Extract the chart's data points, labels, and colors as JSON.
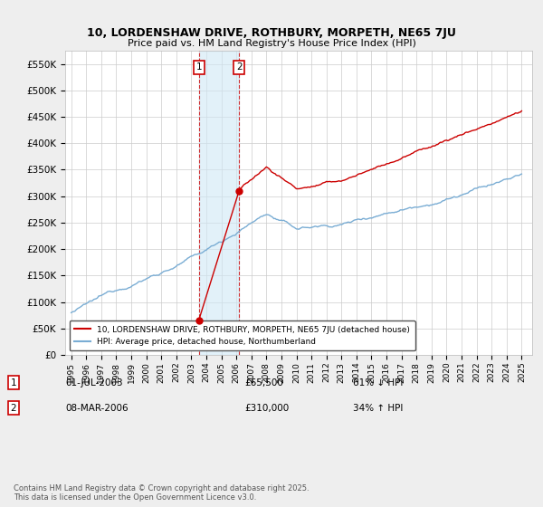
{
  "title_line1": "10, LORDENSHAW DRIVE, ROTHBURY, MORPETH, NE65 7JU",
  "title_line2": "Price paid vs. HM Land Registry's House Price Index (HPI)",
  "legend_line1": "10, LORDENSHAW DRIVE, ROTHBURY, MORPETH, NE65 7JU (detached house)",
  "legend_line2": "HPI: Average price, detached house, Northumberland",
  "sale1_date": "01-JUL-2003",
  "sale1_price": "£65,500",
  "sale1_hpi": "61% ↓ HPI",
  "sale2_date": "08-MAR-2006",
  "sale2_price": "£310,000",
  "sale2_hpi": "34% ↑ HPI",
  "footer": "Contains HM Land Registry data © Crown copyright and database right 2025.\nThis data is licensed under the Open Government Licence v3.0.",
  "ylim": [
    0,
    575000
  ],
  "yticks": [
    0,
    50000,
    100000,
    150000,
    200000,
    250000,
    300000,
    350000,
    400000,
    450000,
    500000,
    550000
  ],
  "sale1_year": 2003.5,
  "sale1_price_val": 65500,
  "sale2_year": 2006.18,
  "sale2_price_val": 310000,
  "red_color": "#cc0000",
  "blue_color": "#7aadd4",
  "background_color": "#eeeeee",
  "plot_bg_color": "#ffffff",
  "grid_color": "#cccccc",
  "span_color": "#d0e8f5"
}
